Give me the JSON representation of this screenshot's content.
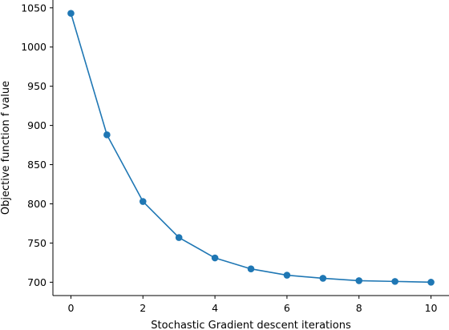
{
  "chart_data": {
    "type": "line",
    "xlabel": "Stochastic Gradient descent iterations",
    "ylabel": "Objective function f value",
    "xlim": [
      -0.5,
      10.5
    ],
    "ylim": [
      683,
      1060
    ],
    "xticks": [
      0,
      2,
      4,
      6,
      8,
      10
    ],
    "yticks": [
      700,
      750,
      800,
      850,
      900,
      950,
      1000,
      1050
    ],
    "grid": false,
    "color": "#1f77b4",
    "series": [
      {
        "x": [
          0,
          1,
          2,
          3,
          4,
          5,
          6,
          7,
          8,
          9,
          10
        ],
        "y": [
          1043,
          888,
          803,
          757,
          731,
          717,
          709,
          705,
          702,
          701,
          700
        ]
      }
    ]
  }
}
